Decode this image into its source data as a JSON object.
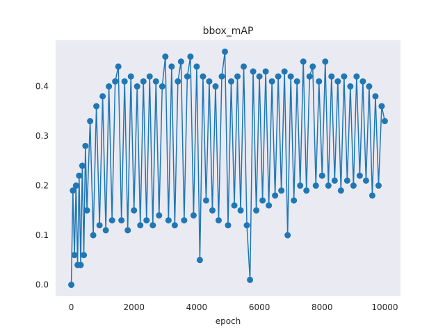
{
  "chart_data": {
    "type": "line",
    "title": "bbox_mAP",
    "xlabel": "epoch",
    "ylabel": "",
    "xlim": [
      -500,
      10500
    ],
    "ylim": [
      -0.023,
      0.493
    ],
    "xticks": [
      0,
      2000,
      4000,
      6000,
      8000,
      10000
    ],
    "xtick_labels": [
      "0",
      "2000",
      "4000",
      "6000",
      "8000",
      "10000"
    ],
    "yticks": [
      0.0,
      0.1,
      0.2,
      0.3,
      0.4
    ],
    "ytick_labels": [
      "0.0",
      "0.1",
      "0.2",
      "0.3",
      "0.4"
    ],
    "grid": false,
    "legend": "none",
    "background": "#eaeaf2",
    "series": [
      {
        "color": "#1f77b4",
        "marker": "circle",
        "x": [
          0,
          50,
          100,
          150,
          200,
          250,
          300,
          350,
          400,
          450,
          500,
          600,
          700,
          800,
          900,
          1000,
          1100,
          1200,
          1300,
          1400,
          1500,
          1600,
          1700,
          1800,
          1900,
          2000,
          2100,
          2200,
          2300,
          2400,
          2500,
          2600,
          2700,
          2800,
          2900,
          3000,
          3100,
          3200,
          3300,
          3400,
          3500,
          3600,
          3700,
          3800,
          3900,
          4000,
          4100,
          4200,
          4300,
          4400,
          4500,
          4600,
          4700,
          4800,
          4900,
          5000,
          5100,
          5200,
          5300,
          5400,
          5500,
          5600,
          5700,
          5800,
          5900,
          6000,
          6100,
          6200,
          6300,
          6400,
          6500,
          6600,
          6700,
          6800,
          6900,
          7000,
          7100,
          7200,
          7300,
          7400,
          7500,
          7600,
          7700,
          7800,
          7900,
          8000,
          8100,
          8200,
          8300,
          8400,
          8500,
          8600,
          8700,
          8800,
          8900,
          9000,
          9100,
          9200,
          9300,
          9400,
          9500,
          9600,
          9700,
          9800,
          9900,
          10000
        ],
        "y": [
          0.0,
          0.19,
          0.06,
          0.2,
          0.04,
          0.22,
          0.04,
          0.24,
          0.06,
          0.28,
          0.15,
          0.33,
          0.1,
          0.36,
          0.12,
          0.38,
          0.11,
          0.4,
          0.13,
          0.41,
          0.44,
          0.13,
          0.41,
          0.11,
          0.42,
          0.15,
          0.4,
          0.12,
          0.41,
          0.13,
          0.42,
          0.12,
          0.41,
          0.14,
          0.4,
          0.46,
          0.13,
          0.44,
          0.12,
          0.41,
          0.45,
          0.13,
          0.42,
          0.46,
          0.14,
          0.44,
          0.05,
          0.42,
          0.17,
          0.41,
          0.15,
          0.4,
          0.13,
          0.42,
          0.47,
          0.12,
          0.41,
          0.16,
          0.42,
          0.15,
          0.44,
          0.12,
          0.01,
          0.43,
          0.15,
          0.42,
          0.17,
          0.43,
          0.16,
          0.41,
          0.18,
          0.42,
          0.19,
          0.43,
          0.1,
          0.42,
          0.17,
          0.41,
          0.2,
          0.45,
          0.19,
          0.42,
          0.44,
          0.2,
          0.41,
          0.22,
          0.45,
          0.2,
          0.42,
          0.21,
          0.41,
          0.19,
          0.42,
          0.21,
          0.4,
          0.2,
          0.42,
          0.22,
          0.41,
          0.21,
          0.4,
          0.18,
          0.38,
          0.2,
          0.36,
          0.33
        ]
      }
    ]
  }
}
